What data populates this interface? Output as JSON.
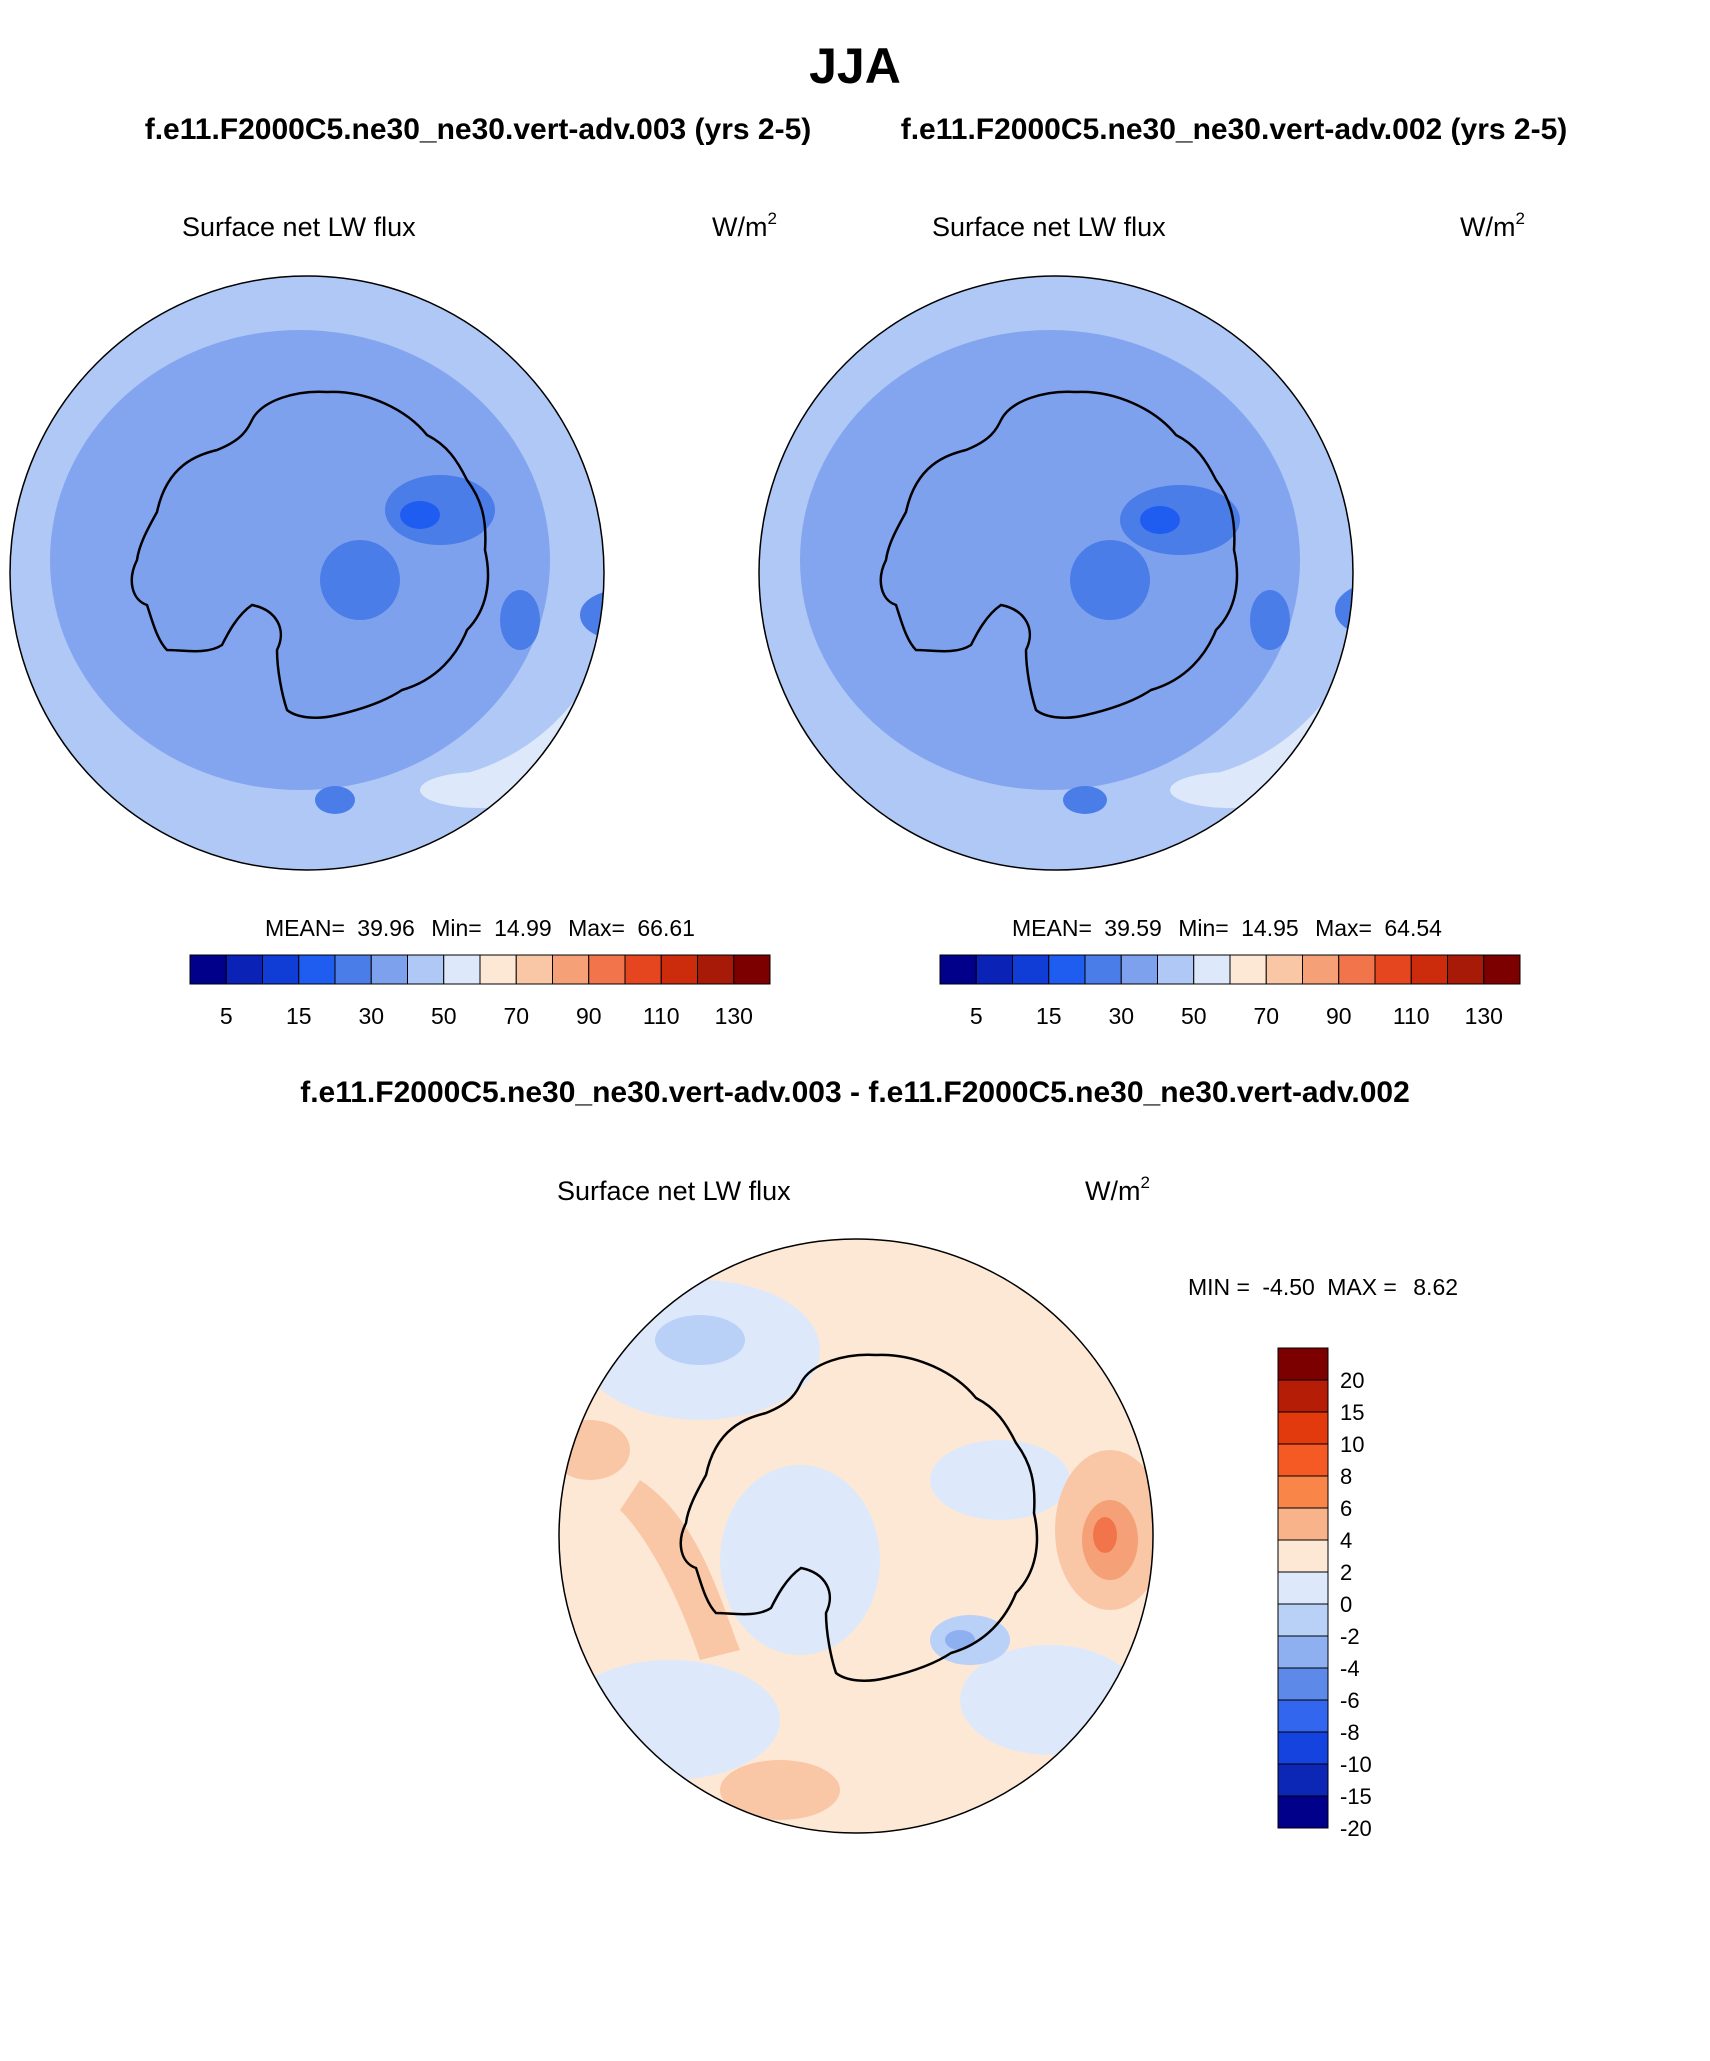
{
  "figure": {
    "title": "JJA",
    "case_a_label": "f.e11.F2000C5.ne30_ne30.vert-adv.003 (yrs 2-5)",
    "case_b_label": "f.e11.F2000C5.ne30_ne30.vert-adv.002 (yrs 2-5)",
    "diff_label": "f.e11.F2000C5.ne30_ne30.vert-adv.003 - f.e11.F2000C5.ne30_ne30.vert-adv.002"
  },
  "chart_data": [
    {
      "type": "heatmap",
      "projection": "south-polar-stereographic",
      "variable": "Surface net LW flux",
      "units": "W/m",
      "units_superscript": "2",
      "stats": {
        "mean_label": "MEAN=",
        "mean": "39.96",
        "min_label": "Min=",
        "min": "14.99",
        "max_label": "Max=",
        "max": "66.61"
      },
      "colorbar": {
        "orientation": "horizontal",
        "levels": [
          "5",
          "15",
          "30",
          "50",
          "70",
          "90",
          "110",
          "130"
        ],
        "colors": [
          "#00008b",
          "#0a22b5",
          "#0f3dd6",
          "#1f5cf0",
          "#4a7de8",
          "#7ea1ee",
          "#b0c8f6",
          "#dde9fb",
          "#fde8d6",
          "#f9c7a5",
          "#f6a077",
          "#f2744a",
          "#e6461f",
          "#cc2b0c",
          "#a81a08",
          "#7d0000"
        ]
      },
      "field_colors": {
        "ocean": "#b0c8f6",
        "midband": "#7ea1ee",
        "ice": "#7ea1ee",
        "low": "#4a7de8",
        "lowest": "#1f5cf0",
        "light": "#dde9fb"
      }
    },
    {
      "type": "heatmap",
      "projection": "south-polar-stereographic",
      "variable": "Surface net LW flux",
      "units": "W/m",
      "units_superscript": "2",
      "stats": {
        "mean_label": "MEAN=",
        "mean": "39.59",
        "min_label": "Min=",
        "min": "14.95",
        "max_label": "Max=",
        "max": "64.54"
      },
      "colorbar": {
        "orientation": "horizontal",
        "levels": [
          "5",
          "15",
          "30",
          "50",
          "70",
          "90",
          "110",
          "130"
        ],
        "colors": [
          "#00008b",
          "#0a22b5",
          "#0f3dd6",
          "#1f5cf0",
          "#4a7de8",
          "#7ea1ee",
          "#b0c8f6",
          "#dde9fb",
          "#fde8d6",
          "#f9c7a5",
          "#f6a077",
          "#f2744a",
          "#e6461f",
          "#cc2b0c",
          "#a81a08",
          "#7d0000"
        ]
      },
      "field_colors": {
        "ocean": "#b0c8f6",
        "midband": "#7ea1ee",
        "ice": "#7ea1ee",
        "low": "#4a7de8",
        "lowest": "#1f5cf0",
        "light": "#dde9fb"
      }
    },
    {
      "type": "heatmap",
      "projection": "south-polar-stereographic",
      "variable": "Surface net LW flux",
      "units": "W/m",
      "units_superscript": "2",
      "stats": {
        "min_label": "MIN =",
        "min": "-4.50",
        "max_label": "MAX =",
        "max": "8.62"
      },
      "colorbar": {
        "orientation": "vertical",
        "levels": [
          "20",
          "15",
          "10",
          "8",
          "6",
          "4",
          "2",
          "0",
          "-2",
          "-4",
          "-6",
          "-8",
          "-10",
          "-15",
          "-20"
        ],
        "colors": [
          "#7d0000",
          "#b51d06",
          "#e23a0c",
          "#f55a24",
          "#f98548",
          "#f9b38b",
          "#fde8d6",
          "#dde9fb",
          "#b9d0f7",
          "#8fb0f0",
          "#5d8ae9",
          "#3366ee",
          "#1443e0",
          "#0c26b5",
          "#00008b"
        ]
      },
      "field_colors": {
        "pos": "#fde8d6",
        "pos2": "#f9c7a5",
        "pos3": "#f6a077",
        "pos4": "#f2744a",
        "neg": "#dde9fb",
        "neg2": "#b9d0f7",
        "neg3": "#8fb0f0"
      }
    }
  ]
}
